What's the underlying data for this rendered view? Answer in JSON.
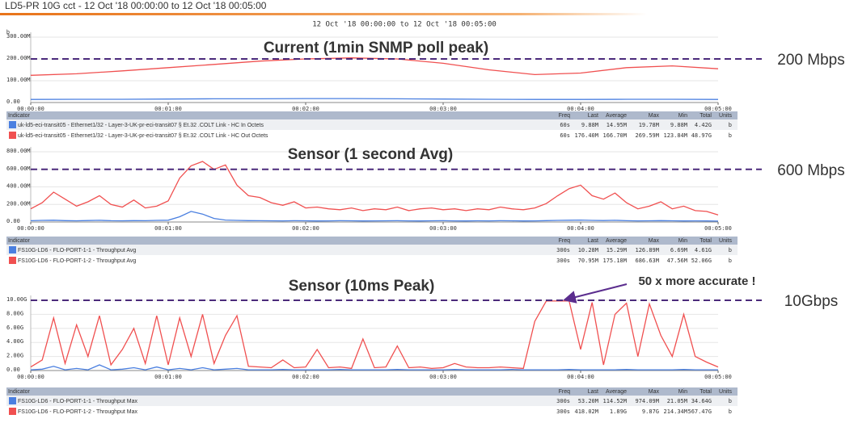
{
  "header": {
    "title": "LD5-PR 10G cct - 12 Oct '18 00:00:00 to 12 Oct '18 00:05:00",
    "subtitle": "12 Oct '18 00:00:00 to 12 Oct '18 00:05:00"
  },
  "chart_data": [
    {
      "type": "line",
      "title": "Current (1min SNMP poll peak)",
      "y_unit": "b",
      "xlim": [
        0,
        300
      ],
      "ylim": [
        0,
        300
      ],
      "grid": true,
      "xticks": [
        {
          "value": 0,
          "label": "00:00:00"
        },
        {
          "value": 60,
          "label": "00:01:00"
        },
        {
          "value": 120,
          "label": "00:02:00"
        },
        {
          "value": 180,
          "label": "00:03:00"
        },
        {
          "value": 240,
          "label": "00:04:00"
        },
        {
          "value": 300,
          "label": "00:05:00"
        }
      ],
      "yticks": [
        {
          "value": 0,
          "label": "0.00"
        },
        {
          "value": 100,
          "label": "100.00M"
        },
        {
          "value": 200,
          "label": "200.00M"
        },
        {
          "value": 300,
          "label": "300.00M"
        }
      ],
      "reference_lines": [
        {
          "value": 200,
          "label": "200 Mbps"
        }
      ],
      "x": [
        0,
        20,
        40,
        60,
        80,
        100,
        120,
        140,
        160,
        180,
        200,
        220,
        240,
        260,
        280,
        300
      ],
      "table_columns": [
        "Indicator",
        "Freq",
        "Last",
        "Average",
        "Max",
        "Min",
        "Total",
        "Units"
      ],
      "series": [
        {
          "name": "uk-ld5-eci-transit05 - Ethernet1/32 - Layer-3-UK-pr-eci-transit07 § Et.32 .COLT Link - HC In Octets",
          "color": "#4a7fe0",
          "stats": [
            "60s",
            "9.88M",
            "14.95M",
            "19.78M",
            "9.88M",
            "4.42G",
            "b"
          ],
          "values": [
            14,
            15,
            15,
            16,
            17,
            17,
            18,
            18,
            17,
            16,
            15,
            14,
            14,
            15,
            15,
            14
          ]
        },
        {
          "name": "uk-ld5-eci-transit05 - Ethernet1/32 - Layer-3-UK-pr-eci-transit07 § Et.32 .COLT Link - HC Out Octets",
          "color": "#f05050",
          "stats": [
            "60s",
            "176.40M",
            "166.70M",
            "269.59M",
            "123.84M",
            "48.97G",
            "b"
          ],
          "values": [
            125,
            132,
            145,
            160,
            175,
            190,
            200,
            205,
            200,
            180,
            150,
            128,
            135,
            160,
            168,
            155
          ]
        }
      ]
    },
    {
      "type": "line",
      "title": "Sensor (1 second Avg)",
      "xlim": [
        0,
        300
      ],
      "ylim": [
        0,
        800
      ],
      "grid": true,
      "xticks": [
        {
          "value": 0,
          "label": "00:00:00"
        },
        {
          "value": 60,
          "label": "00:01:00"
        },
        {
          "value": 120,
          "label": "00:02:00"
        },
        {
          "value": 180,
          "label": "00:03:00"
        },
        {
          "value": 240,
          "label": "00:04:00"
        },
        {
          "value": 300,
          "label": "00:05:00"
        }
      ],
      "yticks": [
        {
          "value": 0,
          "label": "0.00"
        },
        {
          "value": 200,
          "label": "200.00M"
        },
        {
          "value": 400,
          "label": "400.00M"
        },
        {
          "value": 600,
          "label": "600.00M"
        },
        {
          "value": 800,
          "label": "800.00M"
        }
      ],
      "reference_lines": [
        {
          "value": 600,
          "label": "600 Mbps"
        }
      ],
      "x": [
        0,
        5,
        10,
        15,
        20,
        25,
        30,
        35,
        40,
        45,
        50,
        55,
        60,
        65,
        70,
        75,
        80,
        85,
        90,
        95,
        100,
        105,
        110,
        115,
        120,
        125,
        130,
        135,
        140,
        145,
        150,
        155,
        160,
        165,
        170,
        175,
        180,
        185,
        190,
        195,
        200,
        205,
        210,
        215,
        220,
        225,
        230,
        235,
        240,
        245,
        250,
        255,
        260,
        265,
        270,
        275,
        280,
        285,
        290,
        295,
        300
      ],
      "table_columns": [
        "Indicator",
        "Freq",
        "Last",
        "Average",
        "Max",
        "Min",
        "Total",
        "Units"
      ],
      "series": [
        {
          "name": "FS10G-LD6 - FLO-PORT-1-1 - Throughput Avg",
          "color": "#4a7fe0",
          "stats": [
            "300s",
            "10.28M",
            "15.29M",
            "126.89M",
            "6.69M",
            "4.61G",
            "b"
          ],
          "values": [
            15,
            18,
            20,
            16,
            14,
            17,
            19,
            15,
            14,
            16,
            15,
            18,
            20,
            60,
            120,
            90,
            40,
            22,
            18,
            16,
            15,
            14,
            13,
            15,
            14,
            12,
            13,
            15,
            14,
            12,
            13,
            14,
            15,
            13,
            12,
            14,
            15,
            13,
            12,
            14,
            13,
            15,
            14,
            12,
            13,
            16,
            18,
            20,
            22,
            18,
            17,
            19,
            15,
            13,
            14,
            16,
            14,
            12,
            13,
            12,
            10
          ]
        },
        {
          "name": "FS10G-LD6 - FLO-PORT-1-2 - Throughput Avg",
          "color": "#f05050",
          "stats": [
            "300s",
            "70.95M",
            "175.18M",
            "686.63M",
            "47.56M",
            "52.06G",
            "b"
          ],
          "values": [
            150,
            220,
            340,
            260,
            180,
            230,
            300,
            200,
            170,
            250,
            160,
            180,
            240,
            500,
            640,
            690,
            600,
            650,
            420,
            300,
            280,
            220,
            190,
            230,
            160,
            170,
            150,
            140,
            160,
            130,
            150,
            140,
            170,
            130,
            150,
            160,
            140,
            150,
            130,
            150,
            140,
            170,
            150,
            140,
            160,
            210,
            300,
            380,
            420,
            300,
            260,
            330,
            220,
            150,
            180,
            230,
            150,
            180,
            130,
            120,
            80
          ]
        }
      ]
    },
    {
      "type": "line",
      "title": "Sensor  (10ms Peak)",
      "annotation": "50 x more accurate !",
      "xlim": [
        0,
        300
      ],
      "ylim": [
        0,
        10
      ],
      "grid": true,
      "xticks": [
        {
          "value": 0,
          "label": "00:00:00"
        },
        {
          "value": 60,
          "label": "00:01:00"
        },
        {
          "value": 120,
          "label": "00:02:00"
        },
        {
          "value": 180,
          "label": "00:03:00"
        },
        {
          "value": 240,
          "label": "00:04:00"
        },
        {
          "value": 300,
          "label": "00:05:00"
        }
      ],
      "yticks": [
        {
          "value": 0,
          "label": "0.00"
        },
        {
          "value": 2,
          "label": "2.00G"
        },
        {
          "value": 4,
          "label": "4.00G"
        },
        {
          "value": 6,
          "label": "6.00G"
        },
        {
          "value": 8,
          "label": "8.00G"
        },
        {
          "value": 10,
          "label": "10.00G"
        }
      ],
      "reference_lines": [
        {
          "value": 10,
          "label": "10Gbps"
        }
      ],
      "x": [
        0,
        5,
        10,
        15,
        20,
        25,
        30,
        35,
        40,
        45,
        50,
        55,
        60,
        65,
        70,
        75,
        80,
        85,
        90,
        95,
        100,
        105,
        110,
        115,
        120,
        125,
        130,
        135,
        140,
        145,
        150,
        155,
        160,
        165,
        170,
        175,
        180,
        185,
        190,
        195,
        200,
        205,
        210,
        215,
        220,
        225,
        230,
        235,
        240,
        245,
        250,
        255,
        260,
        265,
        270,
        275,
        280,
        285,
        290,
        295,
        300
      ],
      "table_columns": [
        "Indicator",
        "Freq",
        "Last",
        "Average",
        "Max",
        "Min",
        "Total",
        "Units"
      ],
      "series": [
        {
          "name": "FS10G-LD6 - FLO-PORT-1-1 - Throughput Max",
          "color": "#4a7fe0",
          "stats": [
            "300s",
            "53.20M",
            "114.52M",
            "974.09M",
            "21.05M",
            "34.64G",
            "b"
          ],
          "values": [
            0.1,
            0.2,
            0.6,
            0.1,
            0.3,
            0.1,
            0.8,
            0.1,
            0.2,
            0.4,
            0.1,
            0.5,
            0.1,
            0.3,
            0.1,
            0.4,
            0.1,
            0.2,
            0.3,
            0.1,
            0.1,
            0.1,
            0.15,
            0.1,
            0.1,
            0.1,
            0.1,
            0.15,
            0.1,
            0.1,
            0.1,
            0.1,
            0.15,
            0.1,
            0.1,
            0.1,
            0.1,
            0.15,
            0.1,
            0.1,
            0.1,
            0.1,
            0.15,
            0.1,
            0.1,
            0.1,
            0.1,
            0.15,
            0.1,
            0.1,
            0.1,
            0.1,
            0.15,
            0.1,
            0.1,
            0.1,
            0.1,
            0.15,
            0.1,
            0.1,
            0.1
          ]
        },
        {
          "name": "FS10G-LD6 - FLO-PORT-1-2 - Throughput Max",
          "color": "#f05050",
          "stats": [
            "300s",
            "418.02M",
            "1.89G",
            "9.87G",
            "214.34M",
            "567.47G",
            "b"
          ],
          "values": [
            0.5,
            1.5,
            7.5,
            1,
            6.5,
            2,
            7.8,
            0.8,
            3,
            6,
            1,
            7.8,
            0.8,
            7.5,
            2,
            8,
            1,
            5,
            7.8,
            0.6,
            0.5,
            0.4,
            1.5,
            0.4,
            0.5,
            3,
            0.4,
            0.5,
            0.3,
            4.5,
            0.4,
            0.5,
            3.5,
            0.4,
            0.5,
            0.3,
            0.4,
            1,
            0.5,
            0.4,
            0.4,
            0.5,
            0.4,
            0.3,
            7,
            9.9,
            9.9,
            9.9,
            3,
            9.7,
            0.8,
            8,
            9.6,
            2,
            9.5,
            5,
            2,
            8,
            2,
            1.2,
            0.5
          ]
        }
      ]
    }
  ]
}
